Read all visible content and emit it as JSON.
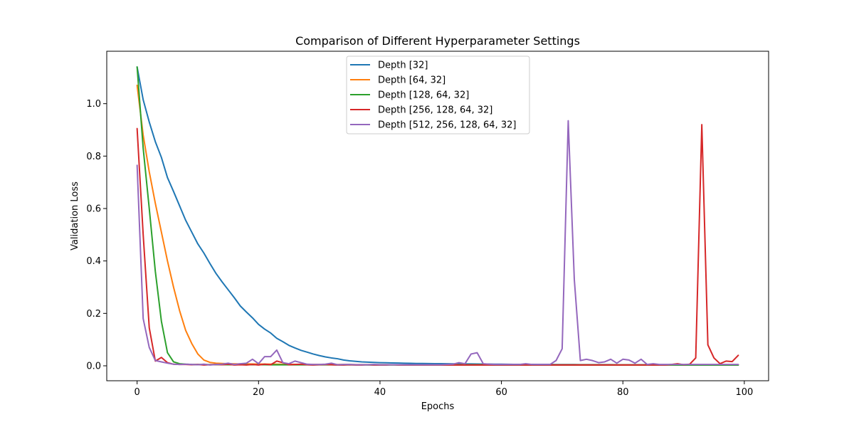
{
  "chart_data": {
    "type": "line",
    "title": "Comparison of Different Hyperparameter Settings",
    "xlabel": "Epochs",
    "ylabel": "Validation Loss",
    "xlim": [
      -5,
      104
    ],
    "ylim": [
      -0.057,
      1.2
    ],
    "xticks": [
      0,
      20,
      40,
      60,
      80,
      100
    ],
    "yticks": [
      0.0,
      0.2,
      0.4,
      0.6,
      0.8,
      1.0
    ],
    "ytick_labels": [
      "0.0",
      "0.2",
      "0.4",
      "0.6",
      "0.8",
      "1.0"
    ],
    "grid": false,
    "legend_position": "top-center",
    "series": [
      {
        "name": "Depth [32]",
        "color": "#1f77b4",
        "values": [
          1.14,
          1.015,
          0.93,
          0.855,
          0.795,
          0.718,
          0.665,
          0.61,
          0.555,
          0.51,
          0.465,
          0.43,
          0.39,
          0.352,
          0.32,
          0.29,
          0.26,
          0.228,
          0.205,
          0.183,
          0.158,
          0.14,
          0.125,
          0.105,
          0.092,
          0.078,
          0.068,
          0.059,
          0.052,
          0.045,
          0.039,
          0.034,
          0.03,
          0.027,
          0.022,
          0.019,
          0.017,
          0.015,
          0.014,
          0.013,
          0.012,
          0.0115,
          0.011,
          0.0105,
          0.01,
          0.0095,
          0.009,
          0.0088,
          0.0085,
          0.0082,
          0.008,
          0.0078,
          0.0076,
          0.0074,
          0.0072,
          0.007,
          0.0068,
          0.0066,
          0.0064,
          0.0062,
          0.006,
          0.0058,
          0.0056,
          0.0055,
          0.0054,
          0.0053,
          0.0052,
          0.0051,
          0.005,
          0.0049,
          0.0048,
          0.0047,
          0.0046,
          0.0045,
          0.0045,
          0.0044,
          0.0044,
          0.0043,
          0.0043,
          0.0042,
          0.0042,
          0.0041,
          0.0041,
          0.004,
          0.004,
          0.004,
          0.0039,
          0.0039,
          0.0039,
          0.0038,
          0.0038,
          0.0038,
          0.0037,
          0.0037,
          0.0037,
          0.0036,
          0.0036,
          0.0036,
          0.0035,
          0.0035
        ]
      },
      {
        "name": "Depth [64, 32]",
        "color": "#ff7f0e",
        "values": [
          1.07,
          0.88,
          0.74,
          0.62,
          0.51,
          0.4,
          0.3,
          0.21,
          0.135,
          0.085,
          0.045,
          0.022,
          0.013,
          0.01,
          0.009,
          0.008,
          0.0075,
          0.007,
          0.007,
          0.0068,
          0.0066,
          0.0064,
          0.0062,
          0.006,
          0.0058,
          0.0056,
          0.0055,
          0.0054,
          0.0053,
          0.0052,
          0.0051,
          0.005,
          0.0049,
          0.0048,
          0.0047,
          0.0046,
          0.0045,
          0.0045,
          0.0044,
          0.0044,
          0.0043,
          0.0043,
          0.0042,
          0.0042,
          0.0041,
          0.0041,
          0.004,
          0.004,
          0.004,
          0.004,
          0.0039,
          0.0039,
          0.0039,
          0.0039,
          0.0038,
          0.0038,
          0.0038,
          0.0038,
          0.0037,
          0.0037,
          0.0037,
          0.0037,
          0.0036,
          0.0036,
          0.0036,
          0.0036,
          0.0035,
          0.0035,
          0.0035,
          0.0035,
          0.0035,
          0.0034,
          0.0034,
          0.0034,
          0.0034,
          0.0034,
          0.0033,
          0.0033,
          0.0033,
          0.0033,
          0.0033,
          0.0033,
          0.0032,
          0.0032,
          0.0032,
          0.0032,
          0.0032,
          0.0032,
          0.0032,
          0.0031,
          0.0031,
          0.0031,
          0.0031,
          0.0031,
          0.0031,
          0.0031,
          0.0031,
          0.003,
          0.003,
          0.003
        ]
      },
      {
        "name": "Depth [128, 64, 32]",
        "color": "#2ca02c",
        "values": [
          1.14,
          0.83,
          0.6,
          0.36,
          0.17,
          0.05,
          0.015,
          0.008,
          0.006,
          0.005,
          0.0048,
          0.0046,
          0.0045,
          0.0044,
          0.0043,
          0.0042,
          0.0042,
          0.0041,
          0.0041,
          0.004,
          0.004,
          0.004,
          0.0039,
          0.0039,
          0.0039,
          0.0038,
          0.0038,
          0.0038,
          0.0038,
          0.0037,
          0.0037,
          0.0037,
          0.0037,
          0.0036,
          0.0036,
          0.0036,
          0.0036,
          0.0036,
          0.0035,
          0.0035,
          0.0035,
          0.0035,
          0.0035,
          0.0035,
          0.0034,
          0.0034,
          0.0034,
          0.0034,
          0.0034,
          0.0034,
          0.0034,
          0.0033,
          0.0033,
          0.0033,
          0.0033,
          0.0033,
          0.0033,
          0.0033,
          0.0033,
          0.0032,
          0.0032,
          0.0032,
          0.0032,
          0.0032,
          0.0032,
          0.0032,
          0.0032,
          0.0032,
          0.0031,
          0.0031,
          0.0031,
          0.0031,
          0.0031,
          0.0031,
          0.0031,
          0.0031,
          0.0031,
          0.0031,
          0.003,
          0.003,
          0.003,
          0.003,
          0.003,
          0.003,
          0.003,
          0.003,
          0.003,
          0.003,
          0.003,
          0.0029,
          0.0029,
          0.0029,
          0.0029,
          0.0029,
          0.0029,
          0.0029,
          0.0029,
          0.0029,
          0.0029,
          0.0029
        ]
      },
      {
        "name": "Depth [256, 128, 64, 32]",
        "color": "#d62728",
        "values": [
          0.905,
          0.5,
          0.145,
          0.018,
          0.032,
          0.012,
          0.006,
          0.005,
          0.005,
          0.004,
          0.005,
          0.003,
          0.004,
          0.005,
          0.004,
          0.006,
          0.003,
          0.004,
          0.003,
          0.005,
          0.003,
          0.006,
          0.004,
          0.018,
          0.012,
          0.004,
          0.005,
          0.006,
          0.004,
          0.003,
          0.004,
          0.005,
          0.004,
          0.003,
          0.003,
          0.004,
          0.003,
          0.003,
          0.004,
          0.003,
          0.003,
          0.003,
          0.004,
          0.003,
          0.003,
          0.003,
          0.003,
          0.003,
          0.003,
          0.003,
          0.003,
          0.003,
          0.003,
          0.003,
          0.003,
          0.003,
          0.003,
          0.003,
          0.003,
          0.003,
          0.003,
          0.003,
          0.003,
          0.003,
          0.003,
          0.003,
          0.003,
          0.003,
          0.003,
          0.003,
          0.003,
          0.003,
          0.003,
          0.003,
          0.003,
          0.003,
          0.003,
          0.003,
          0.003,
          0.003,
          0.003,
          0.003,
          0.003,
          0.003,
          0.003,
          0.003,
          0.003,
          0.003,
          0.005,
          0.008,
          0.004,
          0.006,
          0.03,
          0.92,
          0.08,
          0.03,
          0.008,
          0.018,
          0.016,
          0.04
        ]
      },
      {
        "name": "Depth [512, 256, 128, 64, 32]",
        "color": "#9467bd",
        "values": [
          0.765,
          0.18,
          0.07,
          0.02,
          0.015,
          0.01,
          0.006,
          0.005,
          0.006,
          0.005,
          0.004,
          0.006,
          0.003,
          0.005,
          0.006,
          0.01,
          0.005,
          0.008,
          0.01,
          0.025,
          0.008,
          0.035,
          0.035,
          0.06,
          0.012,
          0.008,
          0.018,
          0.012,
          0.006,
          0.005,
          0.005,
          0.006,
          0.01,
          0.004,
          0.005,
          0.005,
          0.004,
          0.004,
          0.004,
          0.005,
          0.004,
          0.004,
          0.004,
          0.004,
          0.004,
          0.004,
          0.004,
          0.004,
          0.004,
          0.004,
          0.004,
          0.005,
          0.006,
          0.012,
          0.008,
          0.045,
          0.05,
          0.008,
          0.006,
          0.005,
          0.005,
          0.005,
          0.005,
          0.005,
          0.008,
          0.005,
          0.005,
          0.005,
          0.005,
          0.02,
          0.065,
          0.935,
          0.33,
          0.02,
          0.025,
          0.02,
          0.012,
          0.015,
          0.025,
          0.01,
          0.025,
          0.022,
          0.01,
          0.025,
          0.005,
          0.008,
          0.005,
          0.005,
          0.005,
          0.005,
          0.005,
          0.005,
          0.005,
          0.005,
          0.005,
          0.005,
          0.005,
          0.005,
          0.005,
          0.005
        ]
      }
    ]
  }
}
